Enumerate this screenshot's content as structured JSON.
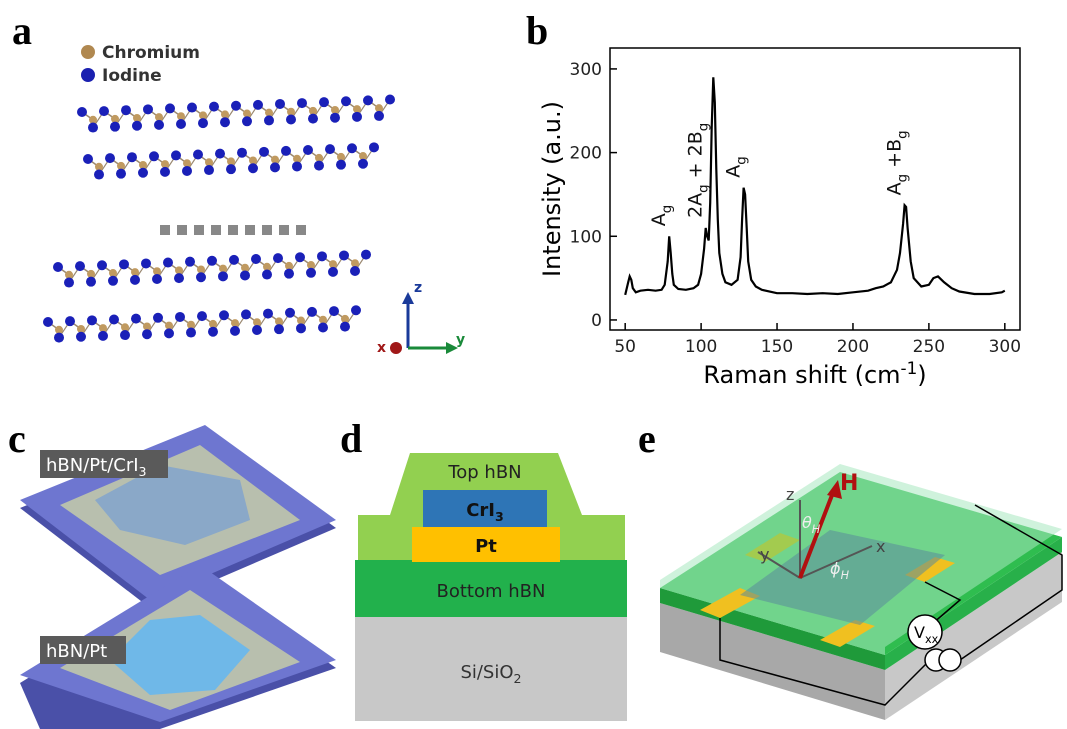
{
  "panel_labels": [
    "a",
    "b",
    "c",
    "d",
    "e"
  ],
  "panel_a": {
    "legend": [
      "Chromium",
      "Iodine"
    ],
    "axis_labels": [
      "z",
      "x",
      "y"
    ]
  },
  "chart_data": {
    "type": "line",
    "ylabel": "Intensity (a.u.)",
    "xlabel": [
      "Raman shift (cm",
      "-1",
      ")"
    ],
    "x": [
      50,
      52,
      53,
      54,
      55,
      57,
      60,
      65,
      70,
      74,
      76,
      78,
      79,
      80,
      81,
      82,
      85,
      90,
      95,
      98,
      100,
      102,
      103,
      104,
      105,
      106,
      107,
      108,
      109,
      110,
      111,
      112,
      114,
      116,
      120,
      124,
      126,
      127,
      128,
      129,
      130,
      131,
      133,
      136,
      140,
      150,
      160,
      170,
      180,
      190,
      200,
      210,
      215,
      220,
      225,
      229,
      231,
      233,
      234,
      235,
      236,
      238,
      240,
      245,
      250,
      253,
      256,
      260,
      265,
      270,
      280,
      290,
      298,
      300
    ],
    "values": [
      30,
      45,
      52,
      48,
      38,
      33,
      35,
      36,
      35,
      36,
      42,
      70,
      100,
      80,
      55,
      42,
      37,
      36,
      38,
      42,
      55,
      85,
      110,
      100,
      95,
      140,
      230,
      290,
      260,
      180,
      120,
      80,
      55,
      45,
      42,
      48,
      75,
      120,
      158,
      150,
      110,
      70,
      48,
      40,
      36,
      32,
      32,
      31,
      32,
      31,
      33,
      35,
      38,
      40,
      45,
      60,
      80,
      115,
      137,
      135,
      110,
      70,
      50,
      40,
      42,
      50,
      52,
      45,
      38,
      34,
      31,
      31,
      33,
      35
    ],
    "color": "#000000",
    "xlim": [
      40,
      310
    ],
    "ylim": [
      -12,
      325
    ],
    "xticks": [
      50,
      100,
      150,
      200,
      250,
      300
    ],
    "yticks": [
      0,
      100,
      200,
      300
    ],
    "annotations": [
      {
        "x": 79,
        "label": [
          "A",
          "g"
        ]
      },
      {
        "x": 103,
        "label": [
          "2A",
          "g",
          " + 2B",
          "g"
        ]
      },
      {
        "x": 128,
        "label": [
          "A",
          "g"
        ]
      },
      {
        "x": 234,
        "label": [
          "A",
          "g",
          " +B",
          "g"
        ]
      }
    ]
  },
  "panel_c": {
    "labels": [
      [
        "hBN/Pt/CrI",
        "3"
      ],
      [
        "hBN/Pt"
      ]
    ]
  },
  "panel_d": {
    "layers": [
      [
        "Top hBN"
      ],
      [
        "CrI",
        "3"
      ],
      [
        "Pt"
      ],
      [
        "Bottom hBN"
      ],
      [
        "Si/SiO",
        "2"
      ]
    ]
  },
  "panel_e": {
    "field": "H",
    "axes": [
      "z",
      "y",
      "x"
    ],
    "theta": [
      "θ",
      "H"
    ],
    "phi": [
      "ϕ",
      "H"
    ],
    "voltmeter": [
      "V",
      "xx"
    ]
  }
}
